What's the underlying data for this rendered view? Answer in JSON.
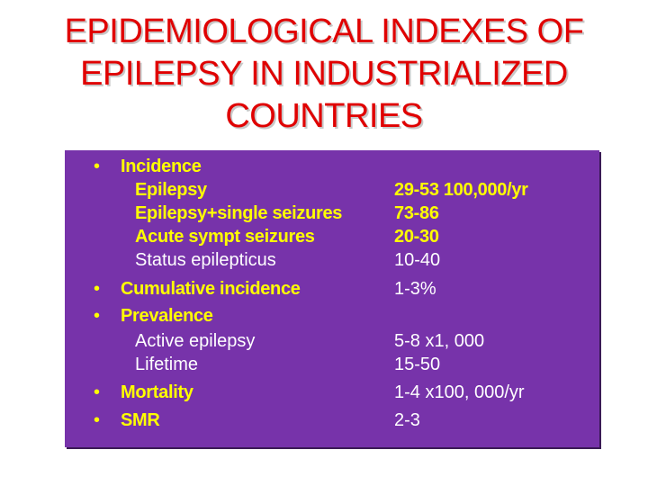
{
  "title": {
    "line1": "EPIDEMIOLOGICAL INDEXES OF",
    "line2": "EPILEPSY IN INDUSTRIALIZED",
    "line3": "COUNTRIES"
  },
  "bullet_char": "•",
  "colors": {
    "title": "#e00000",
    "panel": "#7733aa",
    "highlight_text": "#ffff00",
    "plain_text": "#ffffff"
  },
  "rows": {
    "incidence": {
      "label": "Incidence"
    },
    "epilepsy": {
      "label": "Epilepsy",
      "value": "29-53 100,000/yr"
    },
    "epilepsy_single": {
      "label": "Epilepsy+single seizures",
      "value": "73-86"
    },
    "acute_sympt": {
      "label": "Acute sympt seizures",
      "value": "20-30"
    },
    "status_epilepticus": {
      "label": "Status epilepticus",
      "value": "10-40"
    },
    "cumulative_incidence": {
      "label": "Cumulative incidence",
      "value": "1-3%"
    },
    "prevalence": {
      "label": "Prevalence"
    },
    "active_epilepsy": {
      "label": "Active epilepsy",
      "value": "5-8 x1, 000"
    },
    "lifetime": {
      "label": "Lifetime",
      "value": "15-50"
    },
    "mortality": {
      "label": "Mortality",
      "value": "1-4 x100, 000/yr"
    },
    "smr": {
      "label": "SMR",
      "value": "2-3"
    }
  }
}
